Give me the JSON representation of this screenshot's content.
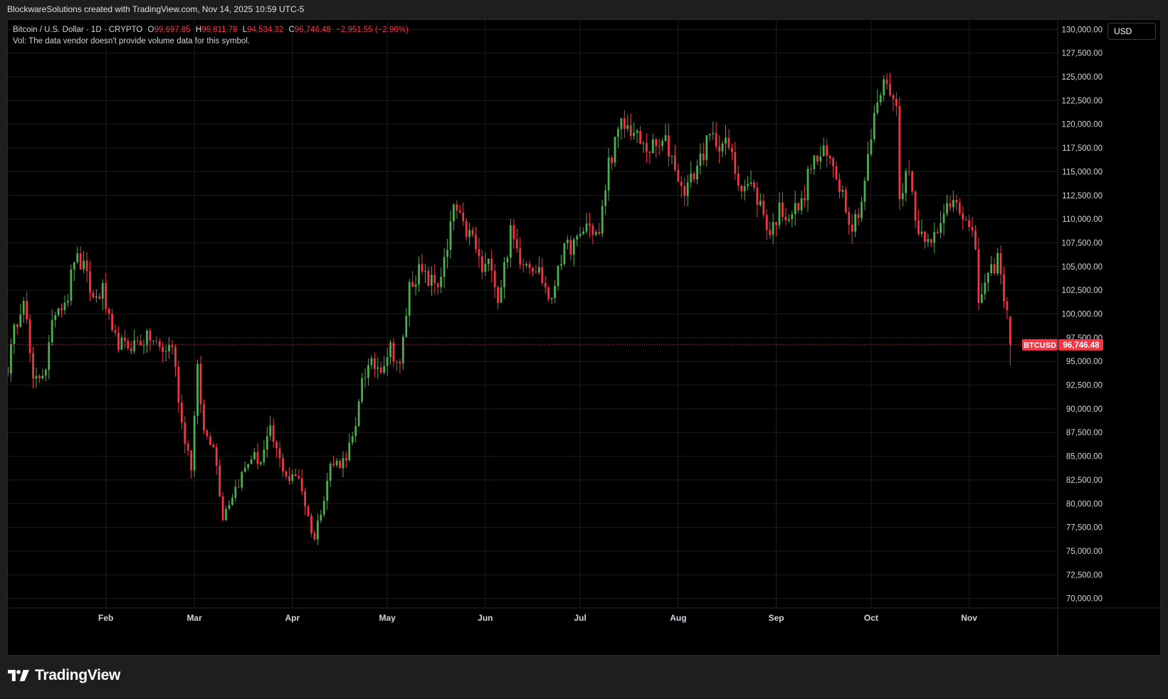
{
  "caption": "BlockwareSolutions created with TradingView.com, Nov 14, 2025 10:59 UTC-5",
  "legend": {
    "symbol": "Bitcoin / U.S. Dollar · 1D · CRYPTO",
    "o_label": "O",
    "o_value": "99,697.85",
    "h_label": "H",
    "h_value": "99,811.78",
    "l_label": "L",
    "l_value": "94,534.32",
    "c_label": "C",
    "c_value": "96,746.48",
    "change": "−2,951.55 (−2.96%)",
    "vol_note": "Vol: The data vendor doesn't provide volume data for this symbol."
  },
  "currency": "USD",
  "brand": {
    "name": "TradingView",
    "logo_icon": "tradingview-logo-icon"
  },
  "colors": {
    "up": "#22ab94",
    "up_bright": "#4caf50",
    "down": "#f23645",
    "grid": "#1c1c1c",
    "text": "#d1d4dc",
    "background": "#000000"
  },
  "chart_data": {
    "type": "candlestick",
    "symbol_tag": "BTCUSD",
    "last_price": 96746.48,
    "last_price_label": "96,746.48",
    "ylim": [
      69000,
      131000
    ],
    "y_ticks": [
      70000,
      72500,
      75000,
      77500,
      80000,
      82500,
      85000,
      87500,
      90000,
      92500,
      95000,
      97500,
      100000,
      102500,
      105000,
      107500,
      110000,
      112500,
      115000,
      117500,
      120000,
      122500,
      125000,
      127500,
      130000
    ],
    "y_tick_labels": [
      "70,000.00",
      "72,500.00",
      "75,000.00",
      "77,500.00",
      "80,000.00",
      "82,500.00",
      "85,000.00",
      "87,500.00",
      "90,000.00",
      "92,500.00",
      "95,000.00",
      "97,500.00",
      "100,000.00",
      "102,500.00",
      "105,000.00",
      "107,500.00",
      "110,000.00",
      "112,500.00",
      "115,000.00",
      "117,500.00",
      "120,000.00",
      "122,500.00",
      "125,000.00",
      "127,500.00",
      "130,000.00"
    ],
    "x_range": [
      "2025-01-01",
      "2025-11-29"
    ],
    "x_ticks": [
      {
        "date": "2025-02-01",
        "label": "Feb"
      },
      {
        "date": "2025-03-01",
        "label": "Mar"
      },
      {
        "date": "2025-04-01",
        "label": "Apr"
      },
      {
        "date": "2025-05-01",
        "label": "May"
      },
      {
        "date": "2025-06-01",
        "label": "Jun"
      },
      {
        "date": "2025-07-01",
        "label": "Jul"
      },
      {
        "date": "2025-08-01",
        "label": "Aug"
      },
      {
        "date": "2025-09-01",
        "label": "Sep"
      },
      {
        "date": "2025-10-01",
        "label": "Oct"
      },
      {
        "date": "2025-11-01",
        "label": "Nov"
      }
    ],
    "series": [
      {
        "name": "BTCUSD",
        "points": [
          {
            "date": "2025-01-01",
            "close": 94400
          },
          {
            "date": "2025-01-03",
            "close": 98100
          },
          {
            "date": "2025-01-06",
            "close": 102200
          },
          {
            "date": "2025-01-09",
            "close": 92500
          },
          {
            "date": "2025-01-13",
            "close": 94500
          },
          {
            "date": "2025-01-16",
            "close": 100500
          },
          {
            "date": "2025-01-20",
            "close": 102000
          },
          {
            "date": "2025-01-22",
            "close": 106000
          },
          {
            "date": "2025-01-25",
            "close": 104800
          },
          {
            "date": "2025-01-28",
            "close": 101500
          },
          {
            "date": "2025-01-31",
            "close": 102500
          },
          {
            "date": "2025-02-03",
            "close": 97500
          },
          {
            "date": "2025-02-07",
            "close": 96500
          },
          {
            "date": "2025-02-11",
            "close": 97000
          },
          {
            "date": "2025-02-15",
            "close": 97500
          },
          {
            "date": "2025-02-19",
            "close": 96000
          },
          {
            "date": "2025-02-22",
            "close": 96800
          },
          {
            "date": "2025-02-25",
            "close": 88500
          },
          {
            "date": "2025-02-28",
            "close": 84000
          },
          {
            "date": "2025-03-02",
            "close": 94000
          },
          {
            "date": "2025-03-04",
            "close": 87500
          },
          {
            "date": "2025-03-07",
            "close": 86500
          },
          {
            "date": "2025-03-10",
            "close": 78800
          },
          {
            "date": "2025-03-13",
            "close": 81000
          },
          {
            "date": "2025-03-16",
            "close": 83000
          },
          {
            "date": "2025-03-19",
            "close": 85000
          },
          {
            "date": "2025-03-22",
            "close": 84500
          },
          {
            "date": "2025-03-25",
            "close": 87500
          },
          {
            "date": "2025-03-28",
            "close": 84500
          },
          {
            "date": "2025-03-31",
            "close": 82500
          },
          {
            "date": "2025-04-03",
            "close": 83000
          },
          {
            "date": "2025-04-06",
            "close": 78500
          },
          {
            "date": "2025-04-08",
            "close": 76300
          },
          {
            "date": "2025-04-10",
            "close": 79500
          },
          {
            "date": "2025-04-13",
            "close": 84000
          },
          {
            "date": "2025-04-17",
            "close": 84500
          },
          {
            "date": "2025-04-21",
            "close": 87500
          },
          {
            "date": "2025-04-23",
            "close": 93500
          },
          {
            "date": "2025-04-26",
            "close": 94500
          },
          {
            "date": "2025-04-29",
            "close": 94500
          },
          {
            "date": "2025-05-02",
            "close": 96500
          },
          {
            "date": "2025-05-05",
            "close": 94300
          },
          {
            "date": "2025-05-08",
            "close": 103000
          },
          {
            "date": "2025-05-11",
            "close": 104500
          },
          {
            "date": "2025-05-14",
            "close": 103500
          },
          {
            "date": "2025-05-17",
            "close": 103200
          },
          {
            "date": "2025-05-20",
            "close": 106500
          },
          {
            "date": "2025-05-22",
            "close": 111500
          },
          {
            "date": "2025-05-25",
            "close": 109000
          },
          {
            "date": "2025-05-28",
            "close": 108000
          },
          {
            "date": "2025-05-31",
            "close": 104500
          },
          {
            "date": "2025-06-03",
            "close": 105500
          },
          {
            "date": "2025-06-05",
            "close": 101500
          },
          {
            "date": "2025-06-09",
            "close": 108500
          },
          {
            "date": "2025-06-12",
            "close": 106000
          },
          {
            "date": "2025-06-15",
            "close": 105500
          },
          {
            "date": "2025-06-18",
            "close": 104500
          },
          {
            "date": "2025-06-22",
            "close": 101000
          },
          {
            "date": "2025-06-24",
            "close": 105500
          },
          {
            "date": "2025-06-27",
            "close": 107000
          },
          {
            "date": "2025-06-30",
            "close": 107500
          },
          {
            "date": "2025-07-03",
            "close": 109500
          },
          {
            "date": "2025-07-07",
            "close": 108200
          },
          {
            "date": "2025-07-10",
            "close": 116000
          },
          {
            "date": "2025-07-14",
            "close": 119800
          },
          {
            "date": "2025-07-17",
            "close": 119500
          },
          {
            "date": "2025-07-21",
            "close": 117500
          },
          {
            "date": "2025-07-25",
            "close": 117500
          },
          {
            "date": "2025-07-28",
            "close": 118000
          },
          {
            "date": "2025-07-31",
            "close": 115800
          },
          {
            "date": "2025-08-02",
            "close": 113000
          },
          {
            "date": "2025-08-05",
            "close": 114000
          },
          {
            "date": "2025-08-08",
            "close": 116500
          },
          {
            "date": "2025-08-11",
            "close": 118500
          },
          {
            "date": "2025-08-14",
            "close": 118200
          },
          {
            "date": "2025-08-17",
            "close": 117500
          },
          {
            "date": "2025-08-20",
            "close": 114000
          },
          {
            "date": "2025-08-24",
            "close": 113500
          },
          {
            "date": "2025-08-27",
            "close": 111500
          },
          {
            "date": "2025-08-30",
            "close": 108500
          },
          {
            "date": "2025-09-02",
            "close": 111000
          },
          {
            "date": "2025-09-05",
            "close": 110500
          },
          {
            "date": "2025-09-09",
            "close": 111500
          },
          {
            "date": "2025-09-12",
            "close": 115800
          },
          {
            "date": "2025-09-16",
            "close": 116800
          },
          {
            "date": "2025-09-19",
            "close": 115800
          },
          {
            "date": "2025-09-22",
            "close": 112800
          },
          {
            "date": "2025-09-25",
            "close": 109200
          },
          {
            "date": "2025-09-28",
            "close": 112000
          },
          {
            "date": "2025-10-01",
            "close": 118500
          },
          {
            "date": "2025-10-03",
            "close": 122500
          },
          {
            "date": "2025-10-06",
            "close": 124800
          },
          {
            "date": "2025-10-09",
            "close": 121500
          },
          {
            "date": "2025-10-10",
            "close": 113000
          },
          {
            "date": "2025-10-13",
            "close": 115000
          },
          {
            "date": "2025-10-16",
            "close": 108500
          },
          {
            "date": "2025-10-19",
            "close": 108500
          },
          {
            "date": "2025-10-22",
            "close": 108000
          },
          {
            "date": "2025-10-25",
            "close": 111500
          },
          {
            "date": "2025-10-28",
            "close": 112500
          },
          {
            "date": "2025-10-31",
            "close": 109500
          },
          {
            "date": "2025-11-03",
            "close": 107000
          },
          {
            "date": "2025-11-04",
            "close": 101500
          },
          {
            "date": "2025-11-07",
            "close": 103500
          },
          {
            "date": "2025-11-10",
            "close": 106000
          },
          {
            "date": "2025-11-12",
            "close": 101500
          },
          {
            "date": "2025-11-13",
            "close": 99700
          },
          {
            "date": "2025-11-14",
            "close": 96746
          }
        ]
      }
    ]
  }
}
